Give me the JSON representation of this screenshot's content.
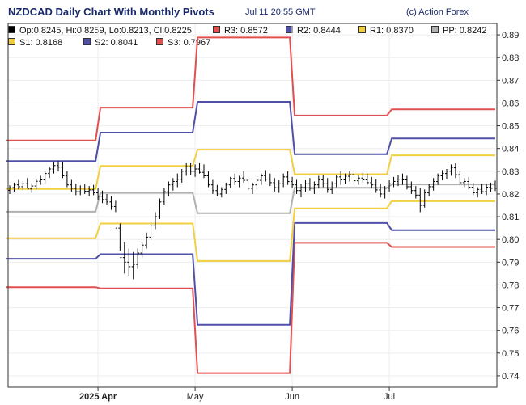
{
  "header": {
    "title": "NZDCAD Daily Chart With Monthly Pivots",
    "timestamp": "Jul 11 20:55 GMT",
    "source": "(c) Action Forex"
  },
  "legend": [
    {
      "label": "Op:0.8245, Hi:0.8259, Lo:0.8213, Cl:0.8225",
      "color": "#000000"
    },
    {
      "label": "R3: 0.8572",
      "color": "#e05050"
    },
    {
      "label": "R2: 0.8444",
      "color": "#5050a8"
    },
    {
      "label": "R1: 0.8370",
      "color": "#f0d040"
    },
    {
      "label": "PP: 0.8242",
      "color": "#b0b0b0"
    },
    {
      "label": "S1: 0.8168",
      "color": "#f0d040"
    },
    {
      "label": "S2: 0.8041",
      "color": "#5050a8"
    },
    {
      "label": "S3: 0.7967",
      "color": "#e05050"
    }
  ],
  "chart_data": {
    "type": "ohlc",
    "ylim": [
      0.735,
      0.895
    ],
    "y_ticks": [
      0.74,
      0.75,
      0.76,
      0.77,
      0.78,
      0.79,
      0.8,
      0.81,
      0.82,
      0.83,
      0.84,
      0.85,
      0.86,
      0.87,
      0.88,
      0.89
    ],
    "x_tick_labels": [
      "2025 Apr",
      "May",
      "Jun",
      "Jul"
    ],
    "pivots": [
      {
        "R3": 0.8435,
        "R2": 0.8345,
        "R1": 0.8222,
        "PP": 0.8122,
        "S1": 0.8005,
        "S2": 0.7915,
        "S3": 0.779
      },
      {
        "R3": 0.858,
        "R2": 0.847,
        "R1": 0.8323,
        "PP": 0.8205,
        "S1": 0.807,
        "S2": 0.7935,
        "S3": 0.7785
      },
      {
        "R3": 0.8888,
        "R2": 0.8605,
        "R1": 0.8395,
        "PP": 0.8115,
        "S1": 0.7905,
        "S2": 0.7625,
        "S3": 0.7412
      },
      {
        "R3": 0.8545,
        "R2": 0.8375,
        "R1": 0.8287,
        "PP": 0.8227,
        "S1": 0.8137,
        "S2": 0.8072,
        "S3": 0.7985
      },
      {
        "R3": 0.8572,
        "R2": 0.8444,
        "R1": 0.837,
        "PP": 0.8242,
        "S1": 0.8168,
        "S2": 0.8041,
        "S3": 0.7967
      }
    ],
    "bars": [
      [
        0.8216,
        0.8238,
        0.82,
        0.8228
      ],
      [
        0.8228,
        0.825,
        0.821,
        0.824
      ],
      [
        0.824,
        0.8262,
        0.822,
        0.8232
      ],
      [
        0.8232,
        0.8255,
        0.8215,
        0.8245
      ],
      [
        0.8245,
        0.827,
        0.8228,
        0.8222
      ],
      [
        0.8222,
        0.8248,
        0.8205,
        0.8235
      ],
      [
        0.8235,
        0.8265,
        0.822,
        0.8256
      ],
      [
        0.8256,
        0.828,
        0.824,
        0.8262
      ],
      [
        0.8262,
        0.83,
        0.8245,
        0.829
      ],
      [
        0.829,
        0.832,
        0.827,
        0.831
      ],
      [
        0.831,
        0.834,
        0.829,
        0.8325
      ],
      [
        0.8325,
        0.8345,
        0.83,
        0.8318
      ],
      [
        0.8318,
        0.834,
        0.827,
        0.828
      ],
      [
        0.828,
        0.83,
        0.823,
        0.824
      ],
      [
        0.824,
        0.8262,
        0.821,
        0.8225
      ],
      [
        0.8225,
        0.8245,
        0.8195,
        0.821
      ],
      [
        0.821,
        0.8238,
        0.8195,
        0.8226
      ],
      [
        0.8226,
        0.8242,
        0.82,
        0.8212
      ],
      [
        0.8212,
        0.8235,
        0.819,
        0.8218
      ],
      [
        0.8218,
        0.824,
        0.8195,
        0.8205
      ],
      [
        0.8205,
        0.8225,
        0.8175,
        0.819
      ],
      [
        0.819,
        0.8215,
        0.816,
        0.8175
      ],
      [
        0.8175,
        0.82,
        0.815,
        0.8165
      ],
      [
        0.8165,
        0.819,
        0.813,
        0.8145
      ],
      [
        0.8145,
        0.817,
        0.812,
        0.805
      ],
      [
        0.805,
        0.807,
        0.795,
        0.792
      ],
      [
        0.792,
        0.799,
        0.785,
        0.79
      ],
      [
        0.79,
        0.796,
        0.784,
        0.788
      ],
      [
        0.788,
        0.7945,
        0.7825,
        0.789
      ],
      [
        0.789,
        0.796,
        0.787,
        0.794
      ],
      [
        0.794,
        0.799,
        0.792,
        0.7975
      ],
      [
        0.7975,
        0.803,
        0.796,
        0.801
      ],
      [
        0.801,
        0.8075,
        0.7995,
        0.806
      ],
      [
        0.806,
        0.812,
        0.8045,
        0.81
      ],
      [
        0.81,
        0.818,
        0.809,
        0.8165
      ],
      [
        0.8165,
        0.8225,
        0.815,
        0.821
      ],
      [
        0.821,
        0.8255,
        0.819,
        0.824
      ],
      [
        0.824,
        0.827,
        0.8215,
        0.8255
      ],
      [
        0.8255,
        0.829,
        0.823,
        0.8265
      ],
      [
        0.8265,
        0.831,
        0.825,
        0.83
      ],
      [
        0.83,
        0.8335,
        0.828,
        0.832
      ],
      [
        0.832,
        0.8335,
        0.8285,
        0.83
      ],
      [
        0.83,
        0.833,
        0.8275,
        0.831
      ],
      [
        0.831,
        0.8335,
        0.829,
        0.8295
      ],
      [
        0.8295,
        0.833,
        0.827,
        0.828
      ],
      [
        0.828,
        0.83,
        0.823,
        0.824
      ],
      [
        0.824,
        0.8262,
        0.82,
        0.8215
      ],
      [
        0.8215,
        0.824,
        0.819,
        0.82
      ],
      [
        0.82,
        0.823,
        0.8185,
        0.822
      ],
      [
        0.822,
        0.825,
        0.82,
        0.824
      ],
      [
        0.824,
        0.8275,
        0.8225,
        0.8268
      ],
      [
        0.8268,
        0.829,
        0.824,
        0.8255
      ],
      [
        0.8255,
        0.828,
        0.823,
        0.827
      ],
      [
        0.827,
        0.83,
        0.825,
        0.826
      ],
      [
        0.826,
        0.8275,
        0.8215,
        0.8225
      ],
      [
        0.8225,
        0.825,
        0.82,
        0.824
      ],
      [
        0.824,
        0.827,
        0.822,
        0.826
      ],
      [
        0.826,
        0.829,
        0.824,
        0.828
      ],
      [
        0.828,
        0.8305,
        0.8255,
        0.8265
      ],
      [
        0.8265,
        0.829,
        0.8235,
        0.825
      ],
      [
        0.825,
        0.827,
        0.821,
        0.8228
      ],
      [
        0.8228,
        0.826,
        0.8205,
        0.8245
      ],
      [
        0.8245,
        0.829,
        0.823,
        0.8275
      ],
      [
        0.8275,
        0.83,
        0.824,
        0.8255
      ],
      [
        0.8255,
        0.8275,
        0.8225,
        0.824
      ],
      [
        0.824,
        0.8262,
        0.82,
        0.8215
      ],
      [
        0.8215,
        0.8245,
        0.8185,
        0.8228
      ],
      [
        0.8228,
        0.826,
        0.821,
        0.8245
      ],
      [
        0.8245,
        0.827,
        0.8215,
        0.8225
      ],
      [
        0.8225,
        0.8255,
        0.82,
        0.824
      ],
      [
        0.824,
        0.828,
        0.8225,
        0.8262
      ],
      [
        0.8262,
        0.8285,
        0.823,
        0.8245
      ],
      [
        0.8245,
        0.827,
        0.8205,
        0.822
      ],
      [
        0.822,
        0.8255,
        0.82,
        0.8245
      ],
      [
        0.8245,
        0.8285,
        0.823,
        0.8275
      ],
      [
        0.8275,
        0.83,
        0.824,
        0.8262
      ],
      [
        0.8262,
        0.829,
        0.8245,
        0.8278
      ],
      [
        0.8278,
        0.83,
        0.8255,
        0.8285
      ],
      [
        0.8285,
        0.8305,
        0.824,
        0.8258
      ],
      [
        0.8258,
        0.8285,
        0.824,
        0.827
      ],
      [
        0.827,
        0.8295,
        0.825,
        0.8262
      ],
      [
        0.8262,
        0.829,
        0.824,
        0.825
      ],
      [
        0.825,
        0.8275,
        0.8225,
        0.824
      ],
      [
        0.824,
        0.8265,
        0.8205,
        0.8218
      ],
      [
        0.8218,
        0.8245,
        0.8185,
        0.82
      ],
      [
        0.82,
        0.8235,
        0.818,
        0.8225
      ],
      [
        0.8225,
        0.826,
        0.821,
        0.8245
      ],
      [
        0.8245,
        0.8275,
        0.823,
        0.8255
      ],
      [
        0.8255,
        0.8285,
        0.8235,
        0.8265
      ],
      [
        0.8265,
        0.829,
        0.824,
        0.8262
      ],
      [
        0.8262,
        0.828,
        0.822,
        0.8232
      ],
      [
        0.8232,
        0.8255,
        0.82,
        0.8215
      ],
      [
        0.8215,
        0.8235,
        0.818,
        0.8195
      ],
      [
        0.8195,
        0.8225,
        0.812,
        0.815
      ],
      [
        0.815,
        0.822,
        0.814,
        0.8205
      ],
      [
        0.8205,
        0.8245,
        0.819,
        0.8232
      ],
      [
        0.8232,
        0.827,
        0.8215,
        0.8255
      ],
      [
        0.8255,
        0.829,
        0.824,
        0.828
      ],
      [
        0.828,
        0.8305,
        0.826,
        0.829
      ],
      [
        0.829,
        0.831,
        0.8265,
        0.83
      ],
      [
        0.83,
        0.833,
        0.828,
        0.8315
      ],
      [
        0.8315,
        0.8335,
        0.827,
        0.8285
      ],
      [
        0.8285,
        0.83,
        0.824,
        0.825
      ],
      [
        0.825,
        0.827,
        0.823,
        0.8255
      ],
      [
        0.8255,
        0.8275,
        0.822,
        0.823
      ],
      [
        0.823,
        0.825,
        0.8195,
        0.8205
      ],
      [
        0.8205,
        0.823,
        0.8185,
        0.822
      ],
      [
        0.822,
        0.8245,
        0.82,
        0.821
      ],
      [
        0.821,
        0.8245,
        0.8195,
        0.823
      ],
      [
        0.823,
        0.825,
        0.821,
        0.8225
      ],
      [
        0.8245,
        0.8259,
        0.8213,
        0.8225
      ]
    ]
  }
}
